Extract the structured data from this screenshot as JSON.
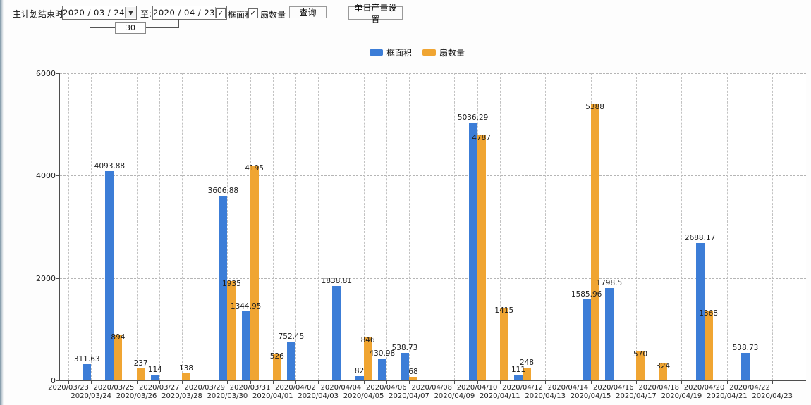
{
  "toolbar": {
    "plan_end_label": "主计划结束时间:",
    "date_from": "2020 / 03 / 24",
    "to_label": "至:",
    "date_to": "2020 / 04 / 23",
    "days_value": "30",
    "checkbox_area": {
      "label": "框面积",
      "checked": true,
      "check_glyph": "✓"
    },
    "checkbox_fan": {
      "label": "扇数量",
      "checked": true,
      "check_glyph": "✓"
    },
    "query_button": "查询",
    "daily_output_button": "单日产量设置",
    "dropdown_glyph": "▼"
  },
  "legend": {
    "items": [
      {
        "label": "框面积",
        "color": "#3C7DD7"
      },
      {
        "label": "扇数量",
        "color": "#F0A532"
      }
    ]
  },
  "chart_data": {
    "type": "bar",
    "title": "",
    "xlabel": "",
    "ylabel": "",
    "ylim": [
      0,
      6000
    ],
    "yticks": [
      0,
      2000,
      4000,
      6000
    ],
    "grid": "dashed",
    "legend_position": "top-center",
    "categories": [
      "2020/03/23",
      "2020/03/24",
      "2020/03/25",
      "2020/03/26",
      "2020/03/27",
      "2020/03/28",
      "2020/03/29",
      "2020/03/30",
      "2020/03/31",
      "2020/04/01",
      "2020/04/02",
      "2020/04/03",
      "2020/04/04",
      "2020/04/05",
      "2020/04/06",
      "2020/04/07",
      "2020/04/08",
      "2020/04/09",
      "2020/04/10",
      "2020/04/11",
      "2020/04/12",
      "2020/04/13",
      "2020/04/14",
      "2020/04/15",
      "2020/04/16",
      "2020/04/17",
      "2020/04/18",
      "2020/04/19",
      "2020/04/20",
      "2020/04/21",
      "2020/04/22",
      "2020/04/23"
    ],
    "series": [
      {
        "name": "框面积",
        "color": "#3C7DD7",
        "values": [
          null,
          311.63,
          4093.88,
          null,
          114,
          null,
          null,
          3606.88,
          1344.95,
          null,
          752.45,
          null,
          1838.81,
          82,
          430.98,
          538.73,
          null,
          null,
          5036.29,
          null,
          111,
          null,
          null,
          1585.96,
          1798.5,
          null,
          null,
          null,
          2688.17,
          null,
          538.73,
          null
        ]
      },
      {
        "name": "扇数量",
        "color": "#F0A532",
        "values": [
          null,
          null,
          894,
          237,
          null,
          138,
          null,
          1935,
          4195,
          526,
          null,
          null,
          null,
          846,
          null,
          68,
          null,
          null,
          4787,
          1415,
          248,
          null,
          null,
          5388,
          null,
          570,
          324,
          null,
          1368,
          null,
          null,
          null
        ]
      }
    ]
  }
}
